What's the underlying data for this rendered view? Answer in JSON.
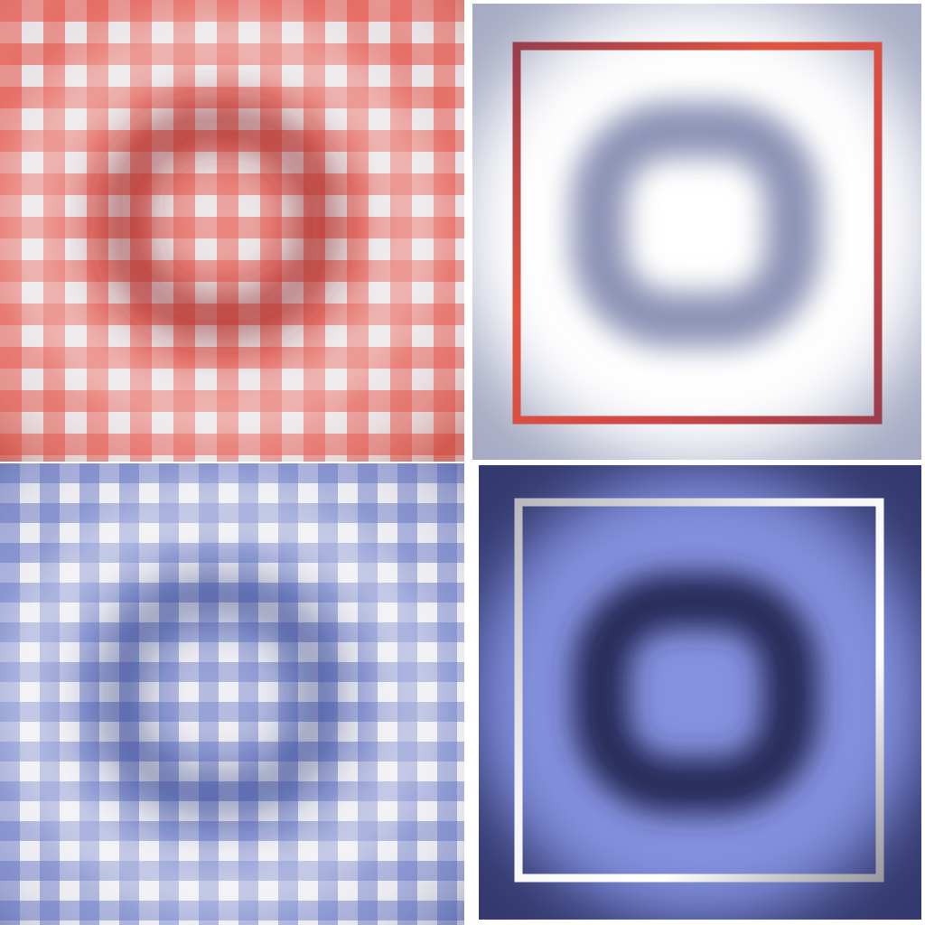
{
  "tiles": [
    {
      "id": "top-left",
      "pattern": "gingham",
      "colors": {
        "base": "#e8e3e6",
        "stripe": "#e44d3f",
        "cross": "#d40000",
        "ring": "#9a3a3a"
      }
    },
    {
      "id": "top-right",
      "pattern": "ring-frame",
      "colors": {
        "background": "#a6abc4",
        "glow": "#ffffff",
        "ring": "#8d93b6",
        "frame_light": "#e05542",
        "frame_dark": "#9b3d4d"
      }
    },
    {
      "id": "bottom-left",
      "pattern": "gingham",
      "colors": {
        "base": "#ecebf0",
        "stripe": "#6b7cc7",
        "cross": "#3b4fa6",
        "ring": "#3a4c9a"
      }
    },
    {
      "id": "bottom-right",
      "pattern": "ring-frame",
      "colors": {
        "background": "#343a6f",
        "glow": "#7f8ddc",
        "ring": "#252a58",
        "frame_light": "#f4f4f6",
        "frame_dark": "#9a9aa0"
      }
    }
  ]
}
